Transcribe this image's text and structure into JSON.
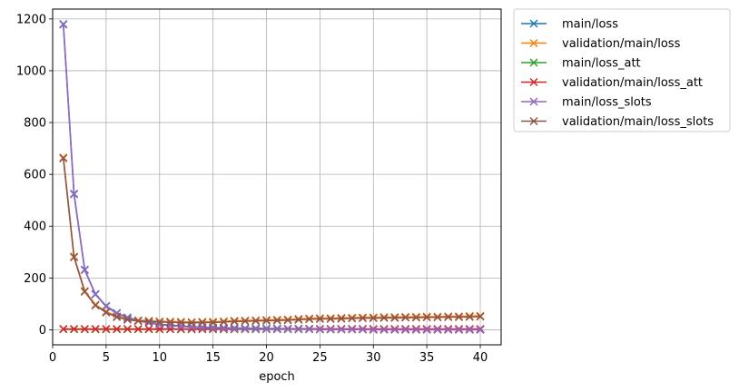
{
  "chart_data": {
    "type": "line",
    "xlabel": "epoch",
    "ylabel": "",
    "xlim": [
      0,
      41.95
    ],
    "ylim": [
      -58,
      1238
    ],
    "xticks": [
      0,
      5,
      10,
      15,
      20,
      25,
      30,
      35,
      40
    ],
    "yticks": [
      0,
      200,
      400,
      600,
      800,
      1000,
      1200
    ],
    "grid": true,
    "legend": "outside-top-right",
    "marker": "x",
    "x": [
      1,
      2,
      3,
      4,
      5,
      6,
      7,
      8,
      9,
      10,
      11,
      12,
      13,
      14,
      15,
      16,
      17,
      18,
      19,
      20,
      21,
      22,
      23,
      24,
      25,
      26,
      27,
      28,
      29,
      30,
      31,
      32,
      33,
      34,
      35,
      36,
      37,
      38,
      39,
      40
    ],
    "series": [
      {
        "name": "main/loss",
        "color": "#1f77b4",
        "values": [
          1180,
          525,
          232,
          138,
          92,
          65,
          48,
          36,
          28,
          22,
          18,
          15,
          12,
          10,
          9,
          8,
          7,
          6,
          6,
          5,
          5,
          4,
          4,
          4,
          3,
          3,
          3,
          3,
          3,
          2,
          2,
          2,
          2,
          2,
          2,
          2,
          2,
          2,
          2,
          2
        ]
      },
      {
        "name": "validation/main/loss",
        "color": "#ff7f0e",
        "values": [
          665,
          283,
          150,
          97,
          70,
          52,
          42,
          37,
          35,
          33,
          32,
          31,
          30,
          31,
          31,
          33,
          35,
          36,
          37,
          38,
          39,
          40,
          42,
          44,
          45,
          45,
          46,
          47,
          48,
          48,
          49,
          49,
          50,
          50,
          51,
          51,
          52,
          52,
          53,
          54
        ]
      },
      {
        "name": "main/loss_att",
        "color": "#2ca02c",
        "values": [
          2,
          2,
          2,
          2,
          2,
          2,
          2,
          2,
          2,
          2,
          2,
          2,
          2,
          2,
          2,
          2,
          2,
          2,
          2,
          2,
          2,
          2,
          2,
          2,
          2,
          2,
          2,
          2,
          2,
          2,
          2,
          2,
          2,
          2,
          2,
          2,
          2,
          2,
          2,
          2
        ]
      },
      {
        "name": "validation/main/loss_att",
        "color": "#d62728",
        "values": [
          3,
          3,
          3,
          3,
          3,
          3,
          3,
          3,
          3,
          3,
          3,
          3,
          3,
          3,
          3,
          3,
          3,
          3,
          3,
          3,
          3,
          3,
          3,
          3,
          3,
          3,
          3,
          3,
          3,
          3,
          3,
          3,
          3,
          3,
          3,
          3,
          3,
          3,
          3,
          3
        ]
      },
      {
        "name": "main/loss_slots",
        "color": "#9467bd",
        "values": [
          1178,
          523,
          230,
          136,
          90,
          63,
          46,
          34,
          26,
          20,
          16,
          13,
          10,
          8,
          7,
          6,
          5,
          4,
          4,
          3,
          3,
          2,
          2,
          2,
          1,
          1,
          1,
          1,
          1,
          0,
          0,
          0,
          0,
          0,
          0,
          0,
          0,
          0,
          0,
          0
        ]
      },
      {
        "name": "validation/main/loss_slots",
        "color": "#8c564b",
        "values": [
          662,
          280,
          147,
          94,
          67,
          49,
          39,
          34,
          32,
          30,
          29,
          28,
          27,
          28,
          28,
          30,
          32,
          33,
          34,
          35,
          36,
          37,
          39,
          41,
          42,
          42,
          43,
          44,
          45,
          45,
          46,
          46,
          47,
          47,
          48,
          48,
          49,
          49,
          50,
          51
        ]
      }
    ]
  }
}
